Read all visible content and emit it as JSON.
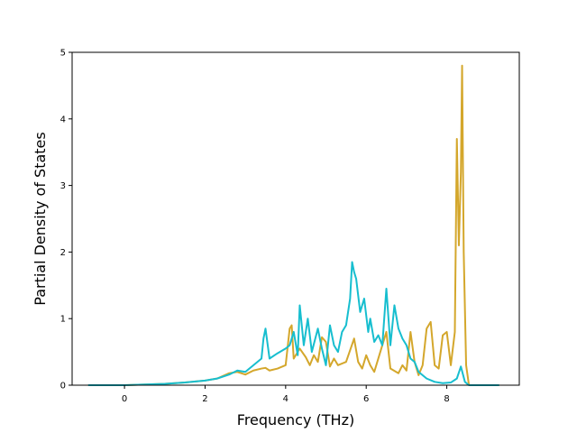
{
  "chart_data": {
    "type": "line",
    "title": "",
    "xlabel": "Frequency (THz)",
    "ylabel": "Partial Density of States",
    "xlim": [
      -1.3,
      9.8
    ],
    "ylim": [
      0,
      5
    ],
    "xticks": [
      0,
      2,
      4,
      6,
      8
    ],
    "yticks": [
      0,
      1,
      2,
      3,
      4,
      5
    ],
    "grid": false,
    "legend": "none",
    "series": [
      {
        "color": "#d4a72c",
        "points": [
          [
            -0.9,
            0
          ],
          [
            0,
            0
          ],
          [
            0.5,
            0.01
          ],
          [
            1,
            0.02
          ],
          [
            1.5,
            0.04
          ],
          [
            2,
            0.07
          ],
          [
            2.3,
            0.1
          ],
          [
            2.6,
            0.18
          ],
          [
            2.8,
            0.2
          ],
          [
            3.0,
            0.16
          ],
          [
            3.2,
            0.22
          ],
          [
            3.4,
            0.25
          ],
          [
            3.5,
            0.26
          ],
          [
            3.6,
            0.22
          ],
          [
            3.8,
            0.25
          ],
          [
            4.0,
            0.3
          ],
          [
            4.1,
            0.85
          ],
          [
            4.15,
            0.9
          ],
          [
            4.2,
            0.4
          ],
          [
            4.35,
            0.55
          ],
          [
            4.5,
            0.42
          ],
          [
            4.6,
            0.3
          ],
          [
            4.7,
            0.45
          ],
          [
            4.8,
            0.35
          ],
          [
            4.9,
            0.72
          ],
          [
            5.0,
            0.65
          ],
          [
            5.1,
            0.28
          ],
          [
            5.2,
            0.4
          ],
          [
            5.3,
            0.3
          ],
          [
            5.5,
            0.35
          ],
          [
            5.7,
            0.7
          ],
          [
            5.8,
            0.35
          ],
          [
            5.9,
            0.25
          ],
          [
            6.0,
            0.45
          ],
          [
            6.1,
            0.3
          ],
          [
            6.2,
            0.2
          ],
          [
            6.4,
            0.6
          ],
          [
            6.5,
            0.8
          ],
          [
            6.6,
            0.25
          ],
          [
            6.8,
            0.18
          ],
          [
            6.9,
            0.3
          ],
          [
            7.0,
            0.22
          ],
          [
            7.1,
            0.8
          ],
          [
            7.2,
            0.35
          ],
          [
            7.3,
            0.15
          ],
          [
            7.4,
            0.3
          ],
          [
            7.5,
            0.85
          ],
          [
            7.6,
            0.95
          ],
          [
            7.7,
            0.3
          ],
          [
            7.8,
            0.25
          ],
          [
            7.9,
            0.75
          ],
          [
            8.0,
            0.8
          ],
          [
            8.1,
            0.3
          ],
          [
            8.2,
            0.8
          ],
          [
            8.25,
            3.7
          ],
          [
            8.3,
            2.1
          ],
          [
            8.35,
            3.2
          ],
          [
            8.38,
            4.8
          ],
          [
            8.42,
            2.0
          ],
          [
            8.48,
            0.3
          ],
          [
            8.55,
            0
          ],
          [
            9.3,
            0
          ]
        ]
      },
      {
        "color": "#17becf",
        "points": [
          [
            -0.9,
            0
          ],
          [
            0,
            0
          ],
          [
            0.5,
            0.01
          ],
          [
            1,
            0.02
          ],
          [
            1.5,
            0.04
          ],
          [
            2,
            0.07
          ],
          [
            2.3,
            0.1
          ],
          [
            2.6,
            0.16
          ],
          [
            2.8,
            0.22
          ],
          [
            3.0,
            0.2
          ],
          [
            3.2,
            0.3
          ],
          [
            3.4,
            0.4
          ],
          [
            3.45,
            0.7
          ],
          [
            3.5,
            0.85
          ],
          [
            3.6,
            0.4
          ],
          [
            3.8,
            0.48
          ],
          [
            4.0,
            0.55
          ],
          [
            4.1,
            0.6
          ],
          [
            4.2,
            0.8
          ],
          [
            4.3,
            0.45
          ],
          [
            4.35,
            1.2
          ],
          [
            4.45,
            0.6
          ],
          [
            4.55,
            1.0
          ],
          [
            4.65,
            0.5
          ],
          [
            4.8,
            0.85
          ],
          [
            4.9,
            0.55
          ],
          [
            5.0,
            0.3
          ],
          [
            5.1,
            0.9
          ],
          [
            5.2,
            0.6
          ],
          [
            5.3,
            0.5
          ],
          [
            5.4,
            0.8
          ],
          [
            5.5,
            0.9
          ],
          [
            5.6,
            1.3
          ],
          [
            5.65,
            1.85
          ],
          [
            5.7,
            1.7
          ],
          [
            5.75,
            1.6
          ],
          [
            5.85,
            1.1
          ],
          [
            5.95,
            1.3
          ],
          [
            6.05,
            0.8
          ],
          [
            6.1,
            1.0
          ],
          [
            6.2,
            0.65
          ],
          [
            6.3,
            0.75
          ],
          [
            6.4,
            0.6
          ],
          [
            6.5,
            1.45
          ],
          [
            6.6,
            0.6
          ],
          [
            6.7,
            1.2
          ],
          [
            6.8,
            0.85
          ],
          [
            6.9,
            0.7
          ],
          [
            7.0,
            0.6
          ],
          [
            7.1,
            0.4
          ],
          [
            7.2,
            0.35
          ],
          [
            7.3,
            0.2
          ],
          [
            7.5,
            0.1
          ],
          [
            7.7,
            0.05
          ],
          [
            7.9,
            0.03
          ],
          [
            8.1,
            0.04
          ],
          [
            8.25,
            0.1
          ],
          [
            8.35,
            0.28
          ],
          [
            8.45,
            0.05
          ],
          [
            8.55,
            0
          ],
          [
            9.3,
            0
          ]
        ]
      }
    ]
  }
}
